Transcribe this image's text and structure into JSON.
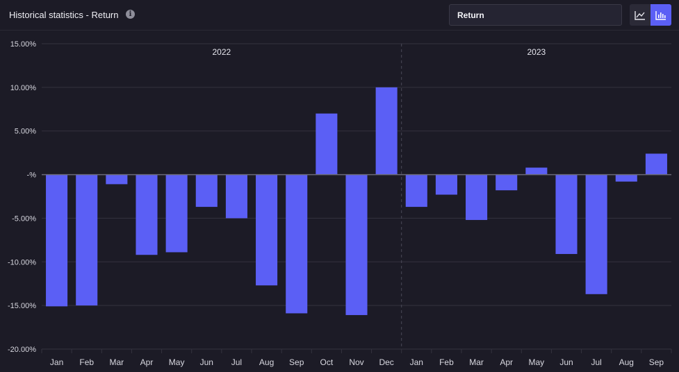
{
  "header": {
    "title": "Historical statistics - Return",
    "info_icon": "info-icon",
    "metric_select": "Return",
    "view_toggle": {
      "options": [
        "line-chart-icon",
        "bar-chart-icon"
      ],
      "active": "bar-chart-icon"
    }
  },
  "colors": {
    "background": "#1c1b26",
    "bar": "#5b5ff5",
    "grid": "#34333f",
    "zero_line": "#6a6a78"
  },
  "chart_data": {
    "type": "bar",
    "groups": [
      {
        "label": "2022",
        "months": 12
      },
      {
        "label": "2023",
        "months": 9
      }
    ],
    "categories": [
      "Jan",
      "Feb",
      "Mar",
      "Apr",
      "May",
      "Jun",
      "Jul",
      "Aug",
      "Sep",
      "Oct",
      "Nov",
      "Dec",
      "Jan",
      "Feb",
      "Mar",
      "Apr",
      "May",
      "Jun",
      "Jul",
      "Aug",
      "Sep"
    ],
    "values": [
      -15.1,
      -15.0,
      -1.1,
      -9.2,
      -8.9,
      -3.7,
      -5.0,
      -12.7,
      -15.9,
      7.0,
      -16.1,
      10.0,
      -3.7,
      -2.3,
      -5.2,
      -1.8,
      0.8,
      -9.1,
      -13.7,
      -0.8,
      2.4
    ],
    "ylim": [
      -20,
      15
    ],
    "yticks": [
      15,
      10,
      5,
      0,
      -5,
      -10,
      -15,
      -20
    ],
    "ytick_labels": [
      "15.00%",
      "10.00%",
      "5.00%",
      "-%",
      "-5.00%",
      "-10.00%",
      "-15.00%",
      "-20.00%"
    ],
    "grid": true
  }
}
